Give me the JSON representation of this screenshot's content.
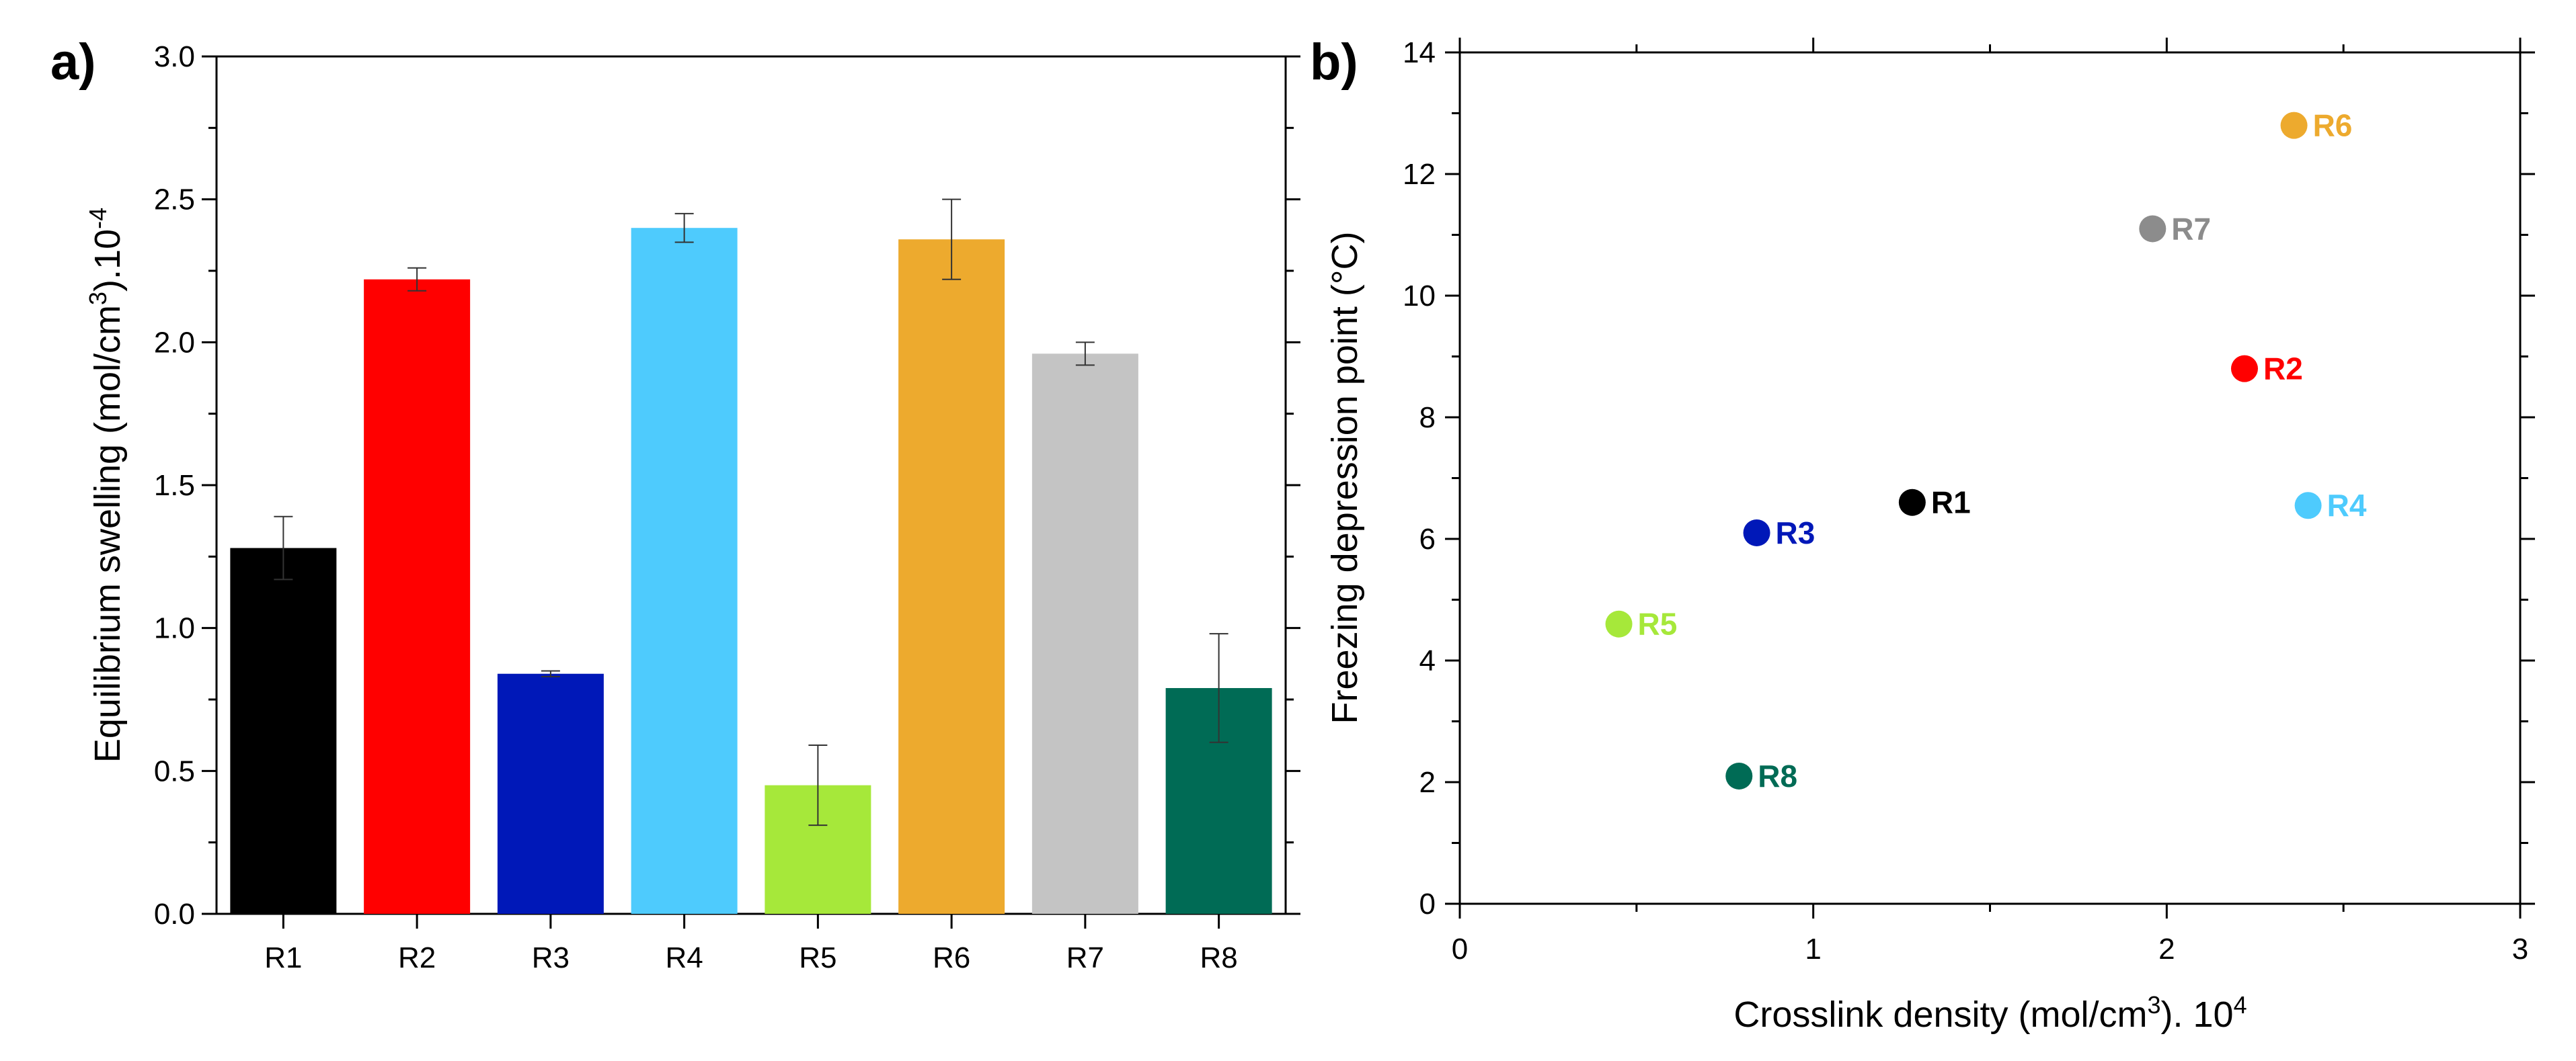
{
  "chart_data": [
    {
      "type": "bar",
      "panel_label": "a)",
      "title": "",
      "ylabel_main": "Equilibrium swelling (mol/cm",
      "ylabel_sup1": "3",
      "ylabel_mid": ").10",
      "ylabel_sup2": "-4",
      "xlabel": "",
      "categories": [
        "R1",
        "R2",
        "R3",
        "R4",
        "R5",
        "R6",
        "R7",
        "R8"
      ],
      "values": [
        1.28,
        2.22,
        0.84,
        2.4,
        0.45,
        2.36,
        1.96,
        0.79
      ],
      "errors": [
        0.11,
        0.04,
        0.01,
        0.05,
        0.14,
        0.14,
        0.04,
        0.19
      ],
      "colors": [
        "#000000",
        "#ff0000",
        "#0018b8",
        "#4ecbfd",
        "#a6e83a",
        "#edaa2e",
        "#c4c4c4",
        "#006b55"
      ],
      "ylim": [
        0,
        3.0
      ],
      "yticks": [
        "0.0",
        "0.5",
        "1.0",
        "1.5",
        "2.0",
        "2.5",
        "3.0"
      ],
      "grid": false
    },
    {
      "type": "scatter",
      "panel_label": "b)",
      "title": "",
      "xlabel_main": "Crosslink density (mol/cm",
      "xlabel_sup1": "3",
      "xlabel_mid": "). 10",
      "xlabel_sup2": "4",
      "ylabel": "Freezing depression point (°C)",
      "xlim": [
        0,
        3
      ],
      "ylim": [
        0,
        14
      ],
      "xticks": [
        "0",
        "1",
        "2",
        "3"
      ],
      "yticks": [
        "0",
        "2",
        "4",
        "6",
        "8",
        "10",
        "12",
        "14"
      ],
      "points": [
        {
          "label": "R1",
          "x": 1.28,
          "y": 6.6,
          "color": "#000000"
        },
        {
          "label": "R2",
          "x": 2.22,
          "y": 8.8,
          "color": "#ff0000"
        },
        {
          "label": "R3",
          "x": 0.84,
          "y": 6.1,
          "color": "#0018b8"
        },
        {
          "label": "R4",
          "x": 2.4,
          "y": 6.55,
          "color": "#4ecbfd"
        },
        {
          "label": "R5",
          "x": 0.45,
          "y": 4.6,
          "color": "#a6e83a"
        },
        {
          "label": "R6",
          "x": 2.36,
          "y": 12.8,
          "color": "#edaa2e"
        },
        {
          "label": "R7",
          "x": 1.96,
          "y": 11.1,
          "color": "#8c8c8c"
        },
        {
          "label": "R8",
          "x": 0.79,
          "y": 2.1,
          "color": "#006b55"
        }
      ],
      "grid": false
    }
  ]
}
